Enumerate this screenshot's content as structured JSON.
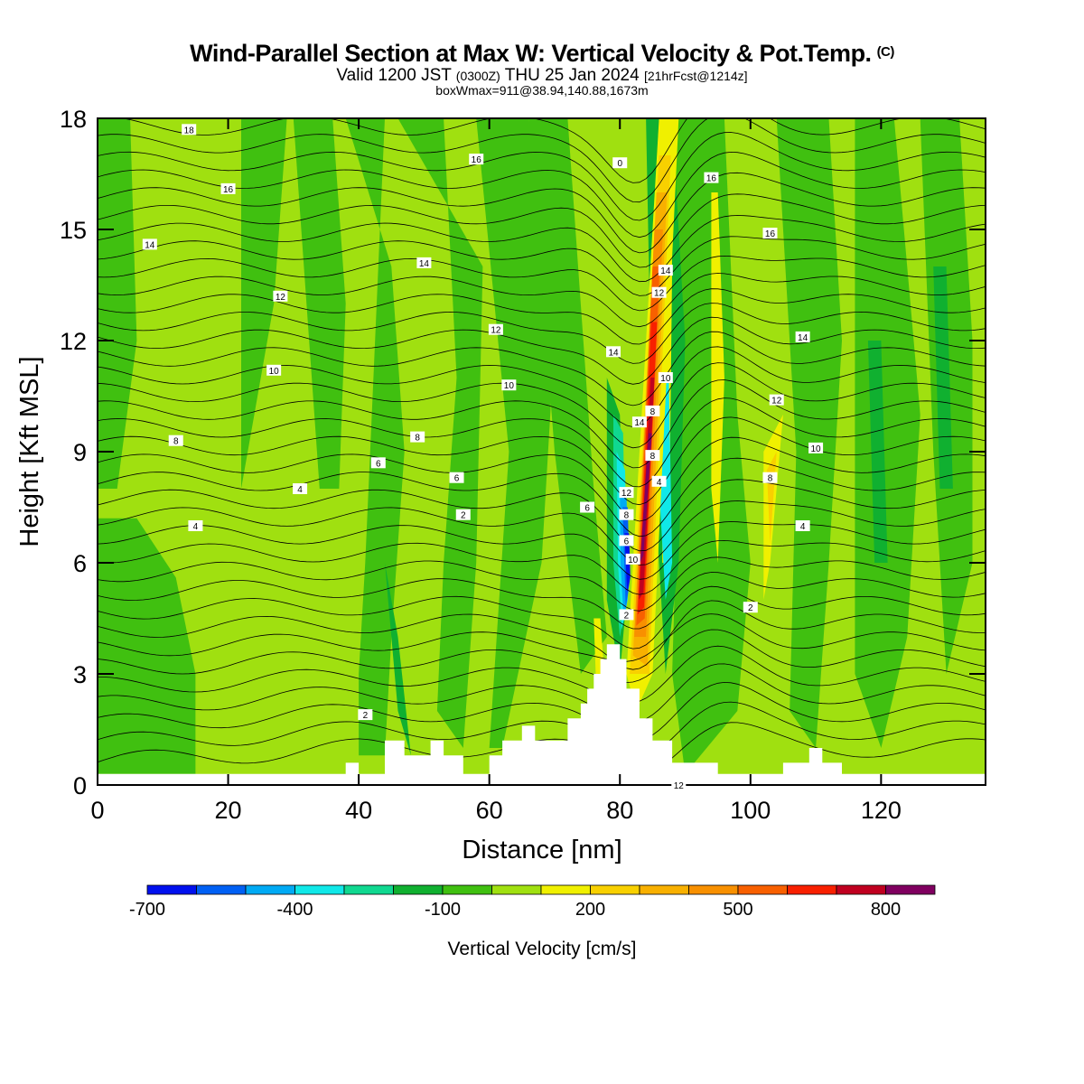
{
  "header": {
    "title": "Wind-Parallel Section at Max W: Vertical Velocity & Pot.Temp.",
    "copyright": "(C)",
    "valid_prefix": "Valid 1200 JST",
    "valid_zulu": "(0300Z)",
    "valid_date": "THU 25 Jan 2024",
    "forecast": "[21hrFcst@1214z]",
    "box_info": "boxWmax=911@38.94,140.88,1673m"
  },
  "chart_data": {
    "type": "heatmap",
    "description_fields": {
      "xlabel": "Distance [nm]",
      "ylabel": "Height [Kft MSL]"
    },
    "xlim": [
      0,
      136
    ],
    "ylim": [
      0,
      18
    ],
    "x_ticks": [
      0,
      20,
      40,
      60,
      80,
      100,
      120
    ],
    "y_ticks": [
      0,
      3,
      6,
      9,
      12,
      15,
      18
    ],
    "colorbar": {
      "title": "Vertical Velocity [cm/s]",
      "tick_labels": [
        "-700",
        "-400",
        "-100",
        "200",
        "500",
        "800"
      ],
      "tick_values": [
        -700,
        -400,
        -100,
        200,
        500,
        800
      ],
      "bounds": [
        -700,
        900
      ],
      "step": 100,
      "colors": [
        "#0010ee",
        "#0060f4",
        "#00aaf4",
        "#10e8e8",
        "#10d890",
        "#10b030",
        "#40c010",
        "#a0e010",
        "#f0f000",
        "#f8d000",
        "#f8b000",
        "#f89000",
        "#f86000",
        "#f82000",
        "#c00020",
        "#800060"
      ]
    },
    "contour_label_values": [
      "18",
      "16",
      "16",
      "14",
      "14",
      "12",
      "12",
      "10",
      "10",
      "8",
      "8",
      "6",
      "6",
      "4",
      "4",
      "2",
      "2",
      "0",
      "16",
      "16",
      "14",
      "12",
      "10",
      "8",
      "6",
      "4",
      "14",
      "12",
      "14",
      "10",
      "8",
      "8",
      "4",
      "12",
      "8",
      "6",
      "10",
      "2",
      "14",
      "12",
      "10",
      "8",
      "6",
      "4",
      "2"
    ],
    "terrain_peak": {
      "distance_nm": 80,
      "height_kft": 3.8
    },
    "vertical_velocity_extremes": {
      "min": -700,
      "max": 911
    }
  }
}
